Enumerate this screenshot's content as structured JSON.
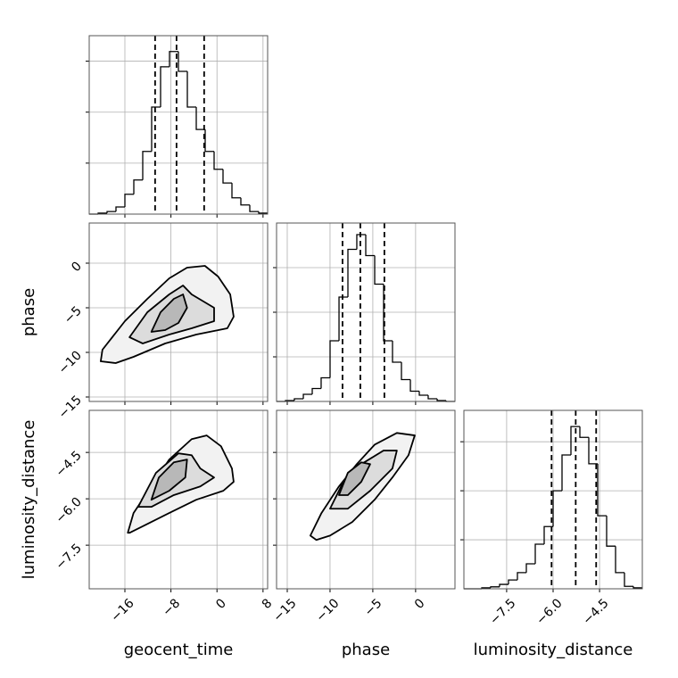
{
  "chart_data": [
    {
      "type": "histogram",
      "grid": true,
      "color": "#000000",
      "bins": [
        -22.2,
        -20.65,
        -19.1,
        -17.55,
        -16,
        -14.45,
        -12.9,
        -11.35,
        -9.8,
        -8.25,
        -6.7,
        -5.15,
        -3.6,
        -2.05,
        -0.5,
        1.05,
        2.6,
        4.15,
        5.7,
        7.25,
        8.8
      ],
      "values": [
        0,
        0.002,
        0.005,
        0.014,
        0.039,
        0.067,
        0.123,
        0.21,
        0.289,
        0.319,
        0.28,
        0.21,
        0.166,
        0.123,
        0.088,
        0.061,
        0.032,
        0.018,
        0.005,
        0.002
      ],
      "quantiles": [
        -10.75,
        -7.03,
        -2.23
      ],
      "xlim": [
        -22.2,
        8.8
      ],
      "xticks": [
        -16,
        -8,
        0,
        8
      ],
      "ylim": [
        0,
        0.35
      ],
      "yticks": [
        0.1,
        0.2,
        0.3
      ]
    },
    {
      "type": "contour",
      "grid": true,
      "color": "#000000",
      "contours": [
        {
          "x": [
            -20.2,
            -19.9,
            -16.0,
            -12.1,
            -8.3,
            -5.2,
            -2.1,
            0.2,
            2.3,
            2.9,
            1.8,
            -3.6,
            -9.0,
            -14.5,
            -17.6
          ],
          "y": [
            -11,
            -9.7,
            -6.5,
            -4,
            -1.7,
            -0.5,
            -0.3,
            -1.5,
            -3.5,
            -6,
            -7.3,
            -8,
            -9,
            -10.5,
            -11.2
          ]
        },
        {
          "x": [
            -15.2,
            -12.1,
            -8.3,
            -5.9,
            -4.4,
            -0.5,
            -0.5,
            -4.4,
            -8.3,
            -12.9
          ],
          "y": [
            -8.3,
            -5.5,
            -3.5,
            -2.5,
            -3.5,
            -5,
            -6.5,
            -7.3,
            -8,
            -9
          ]
        },
        {
          "x": [
            -11.4,
            -9.8,
            -7.5,
            -5.9,
            -5.2,
            -6.7,
            -9.0
          ],
          "y": [
            -7.7,
            -5.5,
            -4,
            -3.5,
            -5,
            -6.7,
            -7.5
          ]
        }
      ],
      "xlim": [
        -22.2,
        8.8
      ],
      "xticks": [
        -16,
        -8,
        0,
        8
      ],
      "ylim": [
        -15.5,
        4.5
      ],
      "yticks": [
        {
          "value": -15,
          "label": "−15"
        },
        {
          "value": -10,
          "label": "−10"
        },
        {
          "value": -5,
          "label": "−5"
        },
        0
      ],
      "ylabel": "phase"
    },
    {
      "type": "histogram",
      "grid": true,
      "color": "#000000",
      "bins": [
        -16.25,
        -15.21,
        -14.17,
        -13.12,
        -12.08,
        -11.04,
        -9.995,
        -8.95,
        -7.91,
        -6.87,
        -5.825,
        -4.78,
        -3.74,
        -2.7,
        -1.655,
        -0.61,
        0.43,
        1.47,
        2.52,
        3.56,
        4.6
      ],
      "values": [
        0,
        0.002,
        0.006,
        0.016,
        0.029,
        0.053,
        0.136,
        0.234,
        0.341,
        0.374,
        0.327,
        0.263,
        0.136,
        0.088,
        0.049,
        0.023,
        0.014,
        0.006,
        0.002,
        0
      ],
      "quantiles": [
        -8.54,
        -6.46,
        -3.65
      ],
      "xlim": [
        -16.25,
        4.6
      ],
      "xticks": [
        -15,
        -10,
        -5,
        0
      ],
      "ylim": [
        0,
        0.4
      ],
      "yticks": [
        0.1,
        0.2,
        0.3
      ]
    },
    {
      "type": "contour",
      "grid": true,
      "color": "#000000",
      "contours": [
        {
          "x": [
            -15.5,
            -14.5,
            -11.4,
            -8.3,
            -4.4,
            -1.8,
            0.7,
            2.6,
            2.9,
            1.1,
            -3.6,
            -8.3,
            -12.9,
            -15.2
          ],
          "y": [
            -7.1,
            -6.46,
            -5.6,
            -4.73,
            -4.07,
            -3.95,
            -4.3,
            -5.02,
            -5.45,
            -5.74,
            -6.03,
            -6.46,
            -6.89,
            -7.1
          ]
        },
        {
          "x": [
            -13.7,
            -10.6,
            -6.7,
            -4.4,
            -2.9,
            -0.5,
            -2.9,
            -7.5,
            -11.4
          ],
          "y": [
            -6.26,
            -5.16,
            -4.53,
            -4.59,
            -5.02,
            -5.31,
            -5.6,
            -5.88,
            -6.26
          ]
        },
        {
          "x": [
            -11.4,
            -10.1,
            -7.5,
            -5.2,
            -5.5,
            -8.3
          ],
          "y": [
            -6.03,
            -5.31,
            -4.82,
            -4.73,
            -5.31,
            -5.74
          ]
        }
      ],
      "xlim": [
        -22.2,
        8.8
      ],
      "xticks": [
        {
          "value": -16,
          "label": "−16"
        },
        {
          "value": -8,
          "label": "−8"
        },
        0,
        8
      ],
      "xlabel": "geocent_time",
      "ylim": [
        -8.91,
        -3.14
      ],
      "yticks": [
        {
          "value": -7.5,
          "label": "−7.5"
        },
        {
          "value": -6,
          "label": "−6.0"
        },
        {
          "value": -4.5,
          "label": "−4.5"
        }
      ],
      "ylabel": "luminosity_distance"
    },
    {
      "type": "contour",
      "grid": true,
      "color": "#000000",
      "contours": [
        {
          "x": [
            -12.3,
            -11.0,
            -8.96,
            -6.88,
            -4.79,
            -2.19,
            -0.1,
            -0.83,
            -2.71,
            -4.79,
            -7.4,
            -10.0,
            -11.6
          ],
          "y": [
            -7.19,
            -6.46,
            -5.6,
            -4.88,
            -4.25,
            -3.87,
            -3.95,
            -4.59,
            -5.31,
            -6.03,
            -6.75,
            -7.19,
            -7.33
          ]
        },
        {
          "x": [
            -10.0,
            -8.44,
            -6.35,
            -3.75,
            -2.19,
            -2.71,
            -5.31,
            -7.92
          ],
          "y": [
            -6.32,
            -5.45,
            -4.88,
            -4.44,
            -4.44,
            -5.02,
            -5.74,
            -6.32
          ]
        },
        {
          "x": [
            -8.96,
            -7.92,
            -6.35,
            -5.31,
            -6.35,
            -7.92
          ],
          "y": [
            -5.88,
            -5.16,
            -4.82,
            -4.88,
            -5.45,
            -5.88
          ]
        }
      ],
      "xlim": [
        -16.25,
        4.6
      ],
      "xticks": [
        {
          "value": -15,
          "label": "−15"
        },
        {
          "value": -10,
          "label": "−10"
        },
        {
          "value": -5,
          "label": "−5"
        },
        0
      ],
      "xlabel": "phase",
      "ylim": [
        -8.91,
        -3.14
      ],
      "yticks": [
        -7.5,
        -6,
        -4.5
      ]
    },
    {
      "type": "histogram",
      "grid": true,
      "color": "#000000",
      "bins": [
        -8.88,
        -8.592,
        -8.304,
        -8.016,
        -7.728,
        -7.44,
        -7.152,
        -6.864,
        -6.576,
        -6.288,
        -6.0,
        -5.712,
        -5.424,
        -5.136,
        -4.848,
        -4.56,
        -4.272,
        -3.984,
        -3.696,
        -3.408,
        -3.12
      ],
      "values": [
        0,
        0,
        0.002,
        0.004,
        0.009,
        0.018,
        0.033,
        0.051,
        0.091,
        0.127,
        0.2,
        0.273,
        0.331,
        0.309,
        0.255,
        0.149,
        0.087,
        0.033,
        0.005,
        0.002
      ],
      "quantiles": [
        -6.05,
        -5.27,
        -4.61
      ],
      "xlim": [
        -8.88,
        -3.12
      ],
      "xticks": [
        {
          "value": -7.5,
          "label": "−7.5"
        },
        {
          "value": -6,
          "label": "−6.0"
        },
        {
          "value": -4.5,
          "label": "−4.5"
        }
      ],
      "xlabel": "luminosity_distance",
      "ylim": [
        0,
        0.364
      ],
      "yticks": [
        0.1,
        0.2,
        0.3
      ]
    }
  ]
}
